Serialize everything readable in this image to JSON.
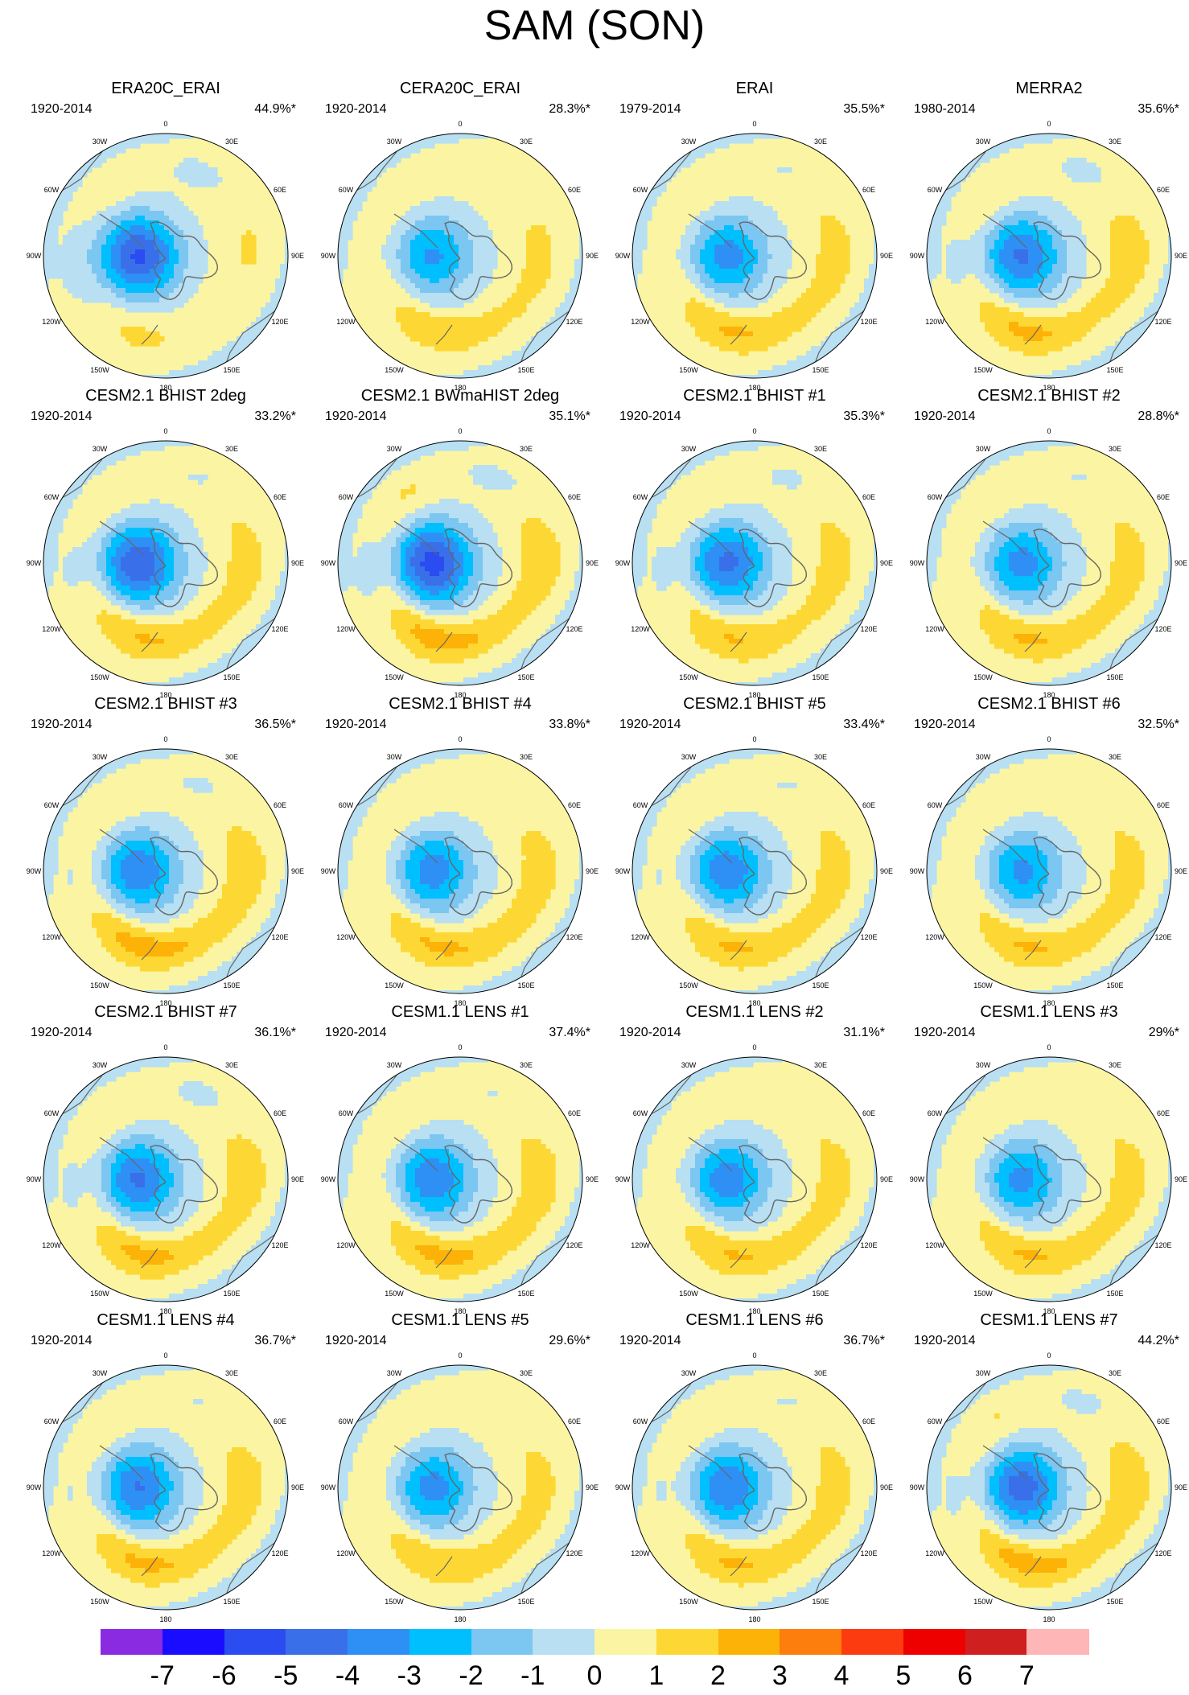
{
  "title": "SAM (SON)",
  "chart_data": {
    "type": "heatmap",
    "description_grid": "5 rows x 4 columns of south-polar stereographic maps",
    "lon_labels": [
      "0",
      "30E",
      "60E",
      "90E",
      "120E",
      "150E",
      "180",
      "150W",
      "120W",
      "90W",
      "60W",
      "30W"
    ],
    "panels": [
      {
        "title": "ERA20C_ERAI",
        "period": "1920-2014",
        "pct": "44.9%*",
        "ring": 0.55,
        "center": -5.5,
        "low_amp": -4,
        "wave": 0.9
      },
      {
        "title": "CERA20C_ERAI",
        "period": "1920-2014",
        "pct": "28.3%*",
        "ring": 1.3,
        "center": -3.5,
        "low_amp": -3,
        "wave": 0.6
      },
      {
        "title": "ERAI",
        "period": "1979-2014",
        "pct": "35.5%*",
        "ring": 1.6,
        "center": -3.8,
        "low_amp": -3,
        "wave": 0.8
      },
      {
        "title": "MERRA2",
        "period": "1980-2014",
        "pct": "35.6%*",
        "ring": 1.6,
        "center": -4.5,
        "low_amp": -3.5,
        "wave": 1.0
      },
      {
        "title": "CESM2.1 BHIST 2deg",
        "period": "1920-2014",
        "pct": "33.2%*",
        "ring": 1.6,
        "center": -5.2,
        "low_amp": -3,
        "wave": 0.8
      },
      {
        "title": "CESM2.1 BWmaHIST 2deg",
        "period": "1920-2014",
        "pct": "35.1%*",
        "ring": 1.9,
        "center": -5.8,
        "low_amp": -3.5,
        "wave": 1.1
      },
      {
        "title": "CESM2.1 BHIST #1",
        "period": "1920-2014",
        "pct": "35.3%*",
        "ring": 1.5,
        "center": -4.6,
        "low_amp": -3,
        "wave": 0.9
      },
      {
        "title": "CESM2.1 BHIST #2",
        "period": "1920-2014",
        "pct": "28.8%*",
        "ring": 1.6,
        "center": -3.8,
        "low_amp": -3,
        "wave": 0.8
      },
      {
        "title": "CESM2.1 BHIST #3",
        "period": "1920-2014",
        "pct": "36.5%*",
        "ring": 1.9,
        "center": -4.2,
        "low_amp": -3,
        "wave": 0.9
      },
      {
        "title": "CESM2.1 BHIST #4",
        "period": "1920-2014",
        "pct": "33.8%*",
        "ring": 1.7,
        "center": -3.9,
        "low_amp": -3,
        "wave": 0.7
      },
      {
        "title": "CESM2.1 BHIST #5",
        "period": "1920-2014",
        "pct": "33.4%*",
        "ring": 1.6,
        "center": -4.1,
        "low_amp": -3,
        "wave": 0.8
      },
      {
        "title": "CESM2.1 BHIST #6",
        "period": "1920-2014",
        "pct": "32.5%*",
        "ring": 1.6,
        "center": -3.6,
        "low_amp": -3,
        "wave": 0.7
      },
      {
        "title": "CESM2.1 BHIST #7",
        "period": "1920-2014",
        "pct": "36.1%*",
        "ring": 1.7,
        "center": -4.5,
        "low_amp": -3,
        "wave": 1.0
      },
      {
        "title": "CESM1.1 LENS #1",
        "period": "1920-2014",
        "pct": "37.4%*",
        "ring": 1.8,
        "center": -4.2,
        "low_amp": -3,
        "wave": 0.8
      },
      {
        "title": "CESM1.1 LENS #2",
        "period": "1920-2014",
        "pct": "31.1%*",
        "ring": 1.6,
        "center": -4.0,
        "low_amp": -3,
        "wave": 0.7
      },
      {
        "title": "CESM1.1 LENS #3",
        "period": "1920-2014",
        "pct": "29%*",
        "ring": 1.6,
        "center": -3.7,
        "low_amp": -3,
        "wave": 0.7
      },
      {
        "title": "CESM1.1 LENS #4",
        "period": "1920-2014",
        "pct": "36.7%*",
        "ring": 1.7,
        "center": -4.4,
        "low_amp": -3,
        "wave": 0.8
      },
      {
        "title": "CESM1.1 LENS #5",
        "period": "1920-2014",
        "pct": "29.6%*",
        "ring": 1.5,
        "center": -3.8,
        "low_amp": -3,
        "wave": 0.6
      },
      {
        "title": "CESM1.1 LENS #6",
        "period": "1920-2014",
        "pct": "36.7%*",
        "ring": 1.6,
        "center": -4.3,
        "low_amp": -3,
        "wave": 0.8
      },
      {
        "title": "CESM1.1 LENS #7",
        "period": "1920-2014",
        "pct": "44.2%*",
        "ring": 1.9,
        "center": -4.9,
        "low_amp": -3.5,
        "wave": 1.0
      }
    ],
    "colorbar": {
      "levels": [
        -7,
        -6,
        -5,
        -4,
        -3,
        -2,
        -1,
        0,
        1,
        2,
        3,
        4,
        5,
        6,
        7
      ],
      "labels": [
        "-7",
        "-6",
        "-5",
        "-4",
        "-3",
        "-2",
        "-1",
        "0",
        "1",
        "2",
        "3",
        "4",
        "5",
        "6",
        "7"
      ],
      "colors": [
        "#8a2be2",
        "#1a0dff",
        "#2b4cf0",
        "#3a6fea",
        "#2e90f5",
        "#00bfff",
        "#7cc6f2",
        "#b8dff2",
        "#fbf5a3",
        "#fdd835",
        "#fdb208",
        "#fd7d0d",
        "#fd3b10",
        "#ef0000",
        "#cf1f1f",
        "#ffb6b6"
      ]
    }
  }
}
